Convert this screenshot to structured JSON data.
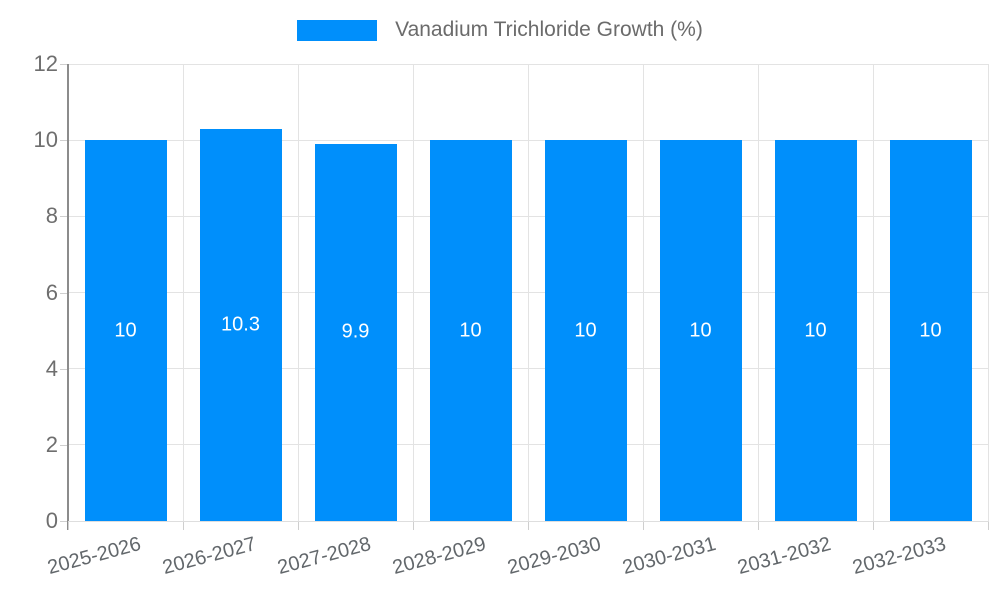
{
  "legend": {
    "label": "Vanadium Trichloride Growth (%)",
    "swatch_color": "#008FFB"
  },
  "chart_data": {
    "type": "bar",
    "title": "",
    "xlabel": "",
    "ylabel": "",
    "categories": [
      "2025-2026",
      "2026-2027",
      "2027-2028",
      "2028-2029",
      "2029-2030",
      "2030-2031",
      "2031-2032",
      "2032-2033"
    ],
    "series": [
      {
        "name": "Vanadium Trichloride Growth (%)",
        "values": [
          10,
          10.3,
          9.9,
          10,
          10,
          10,
          10,
          10
        ]
      }
    ],
    "data_labels": [
      "10",
      "10.3",
      "9.9",
      "10",
      "10",
      "10",
      "10",
      "10"
    ],
    "ylim": [
      0,
      12
    ],
    "yticks": [
      0,
      2,
      4,
      6,
      8,
      10,
      12
    ],
    "grid": true,
    "legend_position": "top",
    "colors": {
      "bar": "#008FFB",
      "grid": "#e3e3e3",
      "y_axis_line": "#8c8c8c",
      "x_axis_line": "#dedede",
      "tick_label": "#6e6e6e",
      "data_label": "#ffffff"
    }
  }
}
